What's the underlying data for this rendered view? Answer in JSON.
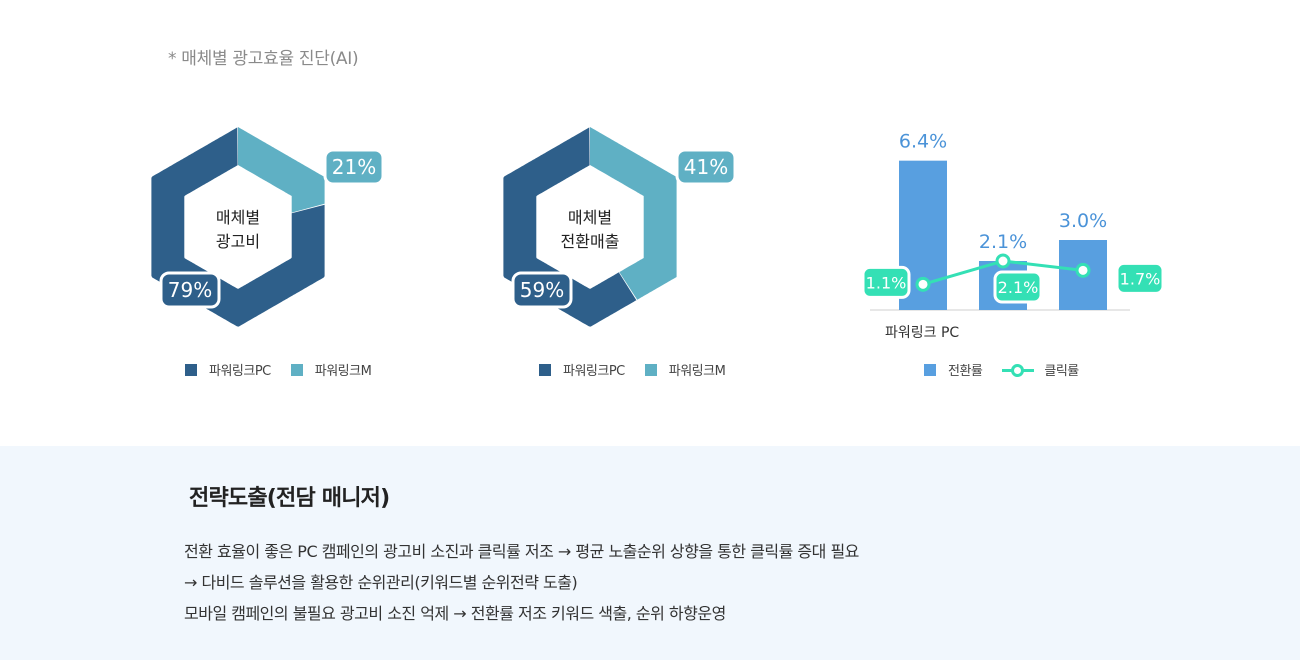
{
  "header": {
    "note": "* 매체별 광고효율 진단(AI)"
  },
  "colors": {
    "dark": "#2e5f8a",
    "light": "#5fb0c4",
    "bar": "#589fe0",
    "line": "#34e0b5",
    "label_bar": "#4b93d8"
  },
  "chart_data": [
    {
      "type": "pie",
      "center_label": [
        "매체별",
        "광고비"
      ],
      "slices": [
        {
          "label": "파워링크PC",
          "value": 79,
          "display": "79%"
        },
        {
          "label": "파워링크M",
          "value": 21,
          "display": "21%"
        }
      ],
      "legend": [
        "파워링크PC",
        "파워링크M"
      ]
    },
    {
      "type": "pie",
      "center_label": [
        "매체별",
        "전환매출"
      ],
      "slices": [
        {
          "label": "파워링크PC",
          "value": 59,
          "display": "59%"
        },
        {
          "label": "파워링크M",
          "value": 41,
          "display": "41%"
        }
      ],
      "legend": [
        "파워링크PC",
        "파워링크M"
      ]
    },
    {
      "type": "bar",
      "category_label": "파워링크 PC",
      "bar_values": [
        6.4,
        2.1,
        3.0
      ],
      "bar_labels": [
        "6.4%",
        "2.1%",
        "3.0%"
      ],
      "line_values": [
        1.1,
        2.1,
        1.7
      ],
      "line_labels": [
        "1.1%",
        "2.1%",
        "1.7%"
      ],
      "ylim": [
        0,
        7.5
      ],
      "legend": [
        "전환률",
        "클릭률"
      ]
    }
  ],
  "strategy": {
    "title": "전략도출(전담 매니저)",
    "lines": [
      "전환 효율이 좋은 PC 캠페인의 광고비 소진과 클릭률 저조 → 평균 노출순위 상향을 통한 클릭률 증대 필요",
      "→ 다비드 솔루션을 활용한 순위관리(키워드별 순위전략 도출)",
      "모바일 캠페인의 불필요 광고비 소진 억제 → 전환률 저조 키워드 색출, 순위 하향운영"
    ]
  }
}
